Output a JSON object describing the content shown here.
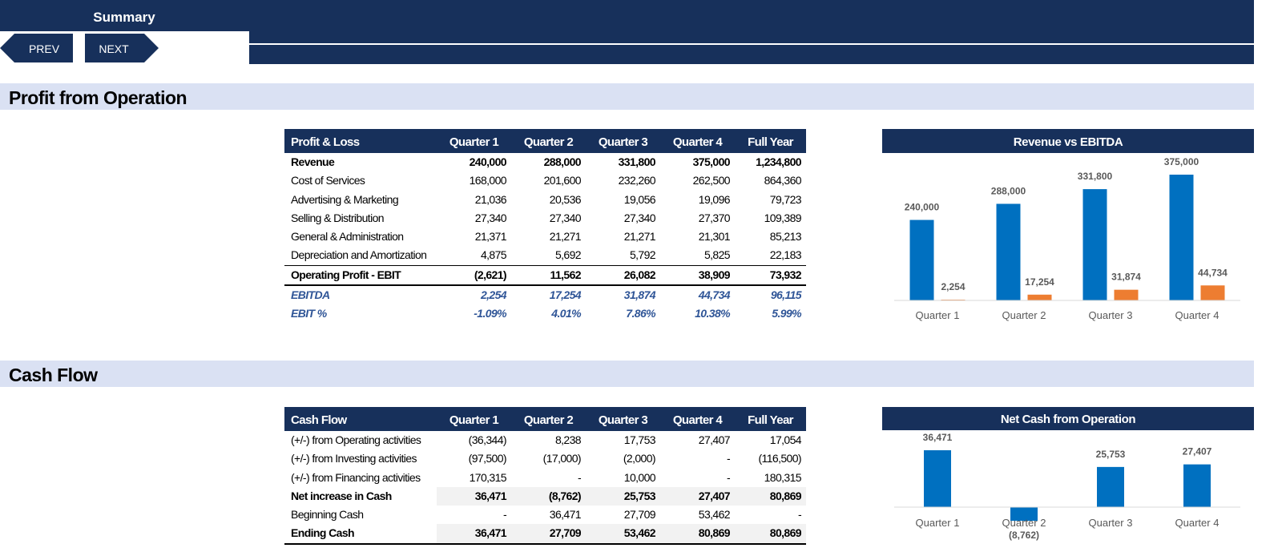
{
  "header": {
    "title": "Summary",
    "buttons": [
      "PREV",
      "NEXT"
    ]
  },
  "sections": [
    "Profit from Operation",
    "Cash Flow"
  ],
  "tables": [
    {
      "columns": [
        "Profit & Loss",
        "Quarter 1",
        "Quarter 2",
        "Quarter 3",
        "Quarter 4",
        "Full Year"
      ],
      "rows": [
        [
          "Revenue",
          "240,000",
          "288,000",
          "331,800",
          "375,000",
          "1,234,800"
        ],
        [
          "Cost of Services",
          "168,000",
          "201,600",
          "232,260",
          "262,500",
          "864,360"
        ],
        [
          "Advertising & Marketing",
          "21,036",
          "20,536",
          "19,056",
          "19,096",
          "79,723"
        ],
        [
          "Selling & Distribution",
          "27,340",
          "27,340",
          "27,340",
          "27,370",
          "109,389"
        ],
        [
          "General & Administration",
          "21,371",
          "21,271",
          "21,271",
          "21,301",
          "85,213"
        ],
        [
          "Depreciation and Amortization",
          "4,875",
          "5,692",
          "5,792",
          "5,825",
          "22,183"
        ],
        [
          "Operating Profit - EBIT",
          "(2,621)",
          "11,562",
          "26,082",
          "38,909",
          "73,932"
        ],
        [
          "EBITDA",
          "2,254",
          "17,254",
          "31,874",
          "44,734",
          "96,115"
        ],
        [
          "EBIT %",
          "-1.09%",
          "4.01%",
          "7.86%",
          "10.38%",
          "5.99%"
        ]
      ]
    },
    {
      "columns": [
        "Cash Flow",
        "Quarter 1",
        "Quarter 2",
        "Quarter 3",
        "Quarter 4",
        "Full Year"
      ],
      "rows": [
        [
          "(+/-) from Operating activities",
          "(36,344)",
          "8,238",
          "17,753",
          "27,407",
          "17,054"
        ],
        [
          "(+/-) from Investing activities",
          "(97,500)",
          "(17,000)",
          "(2,000)",
          "-",
          "(116,500)"
        ],
        [
          "(+/-) from Financing activities",
          "170,315",
          "-",
          "10,000",
          "-",
          "180,315"
        ],
        [
          "Net increase in Cash",
          "36,471",
          "(8,762)",
          "25,753",
          "27,407",
          "80,869"
        ],
        [
          "Beginning Cash",
          "-",
          "36,471",
          "27,709",
          "53,462",
          "-"
        ],
        [
          "Ending Cash",
          "36,471",
          "27,709",
          "53,462",
          "80,869",
          "80,869"
        ]
      ]
    }
  ],
  "chart_data": [
    {
      "type": "bar",
      "title": "Revenue vs EBITDA",
      "categories": [
        "Quarter 1",
        "Quarter 2",
        "Quarter 3",
        "Quarter 4"
      ],
      "series": [
        {
          "color": "#0070c0",
          "values": [
            240000,
            288000,
            331800,
            375000
          ],
          "value_labels": [
            "240,000",
            "288,000",
            "331,800",
            "375,000"
          ]
        },
        {
          "color": "#ed7d31",
          "values": [
            2254,
            17254,
            31874,
            44734
          ],
          "value_labels": [
            "2,254",
            "17,254",
            "31,874",
            "44,734"
          ]
        }
      ]
    },
    {
      "type": "bar",
      "title": "Net Cash from Operation",
      "categories": [
        "Quarter 1",
        "Quarter 2",
        "Quarter 3",
        "Quarter 4"
      ],
      "series": [
        {
          "color": "#0070c0",
          "values": [
            36471,
            -8762,
            25753,
            27407
          ],
          "value_labels": [
            "36,471",
            "(8,762)",
            "25,753",
            "27,407"
          ]
        }
      ]
    }
  ]
}
